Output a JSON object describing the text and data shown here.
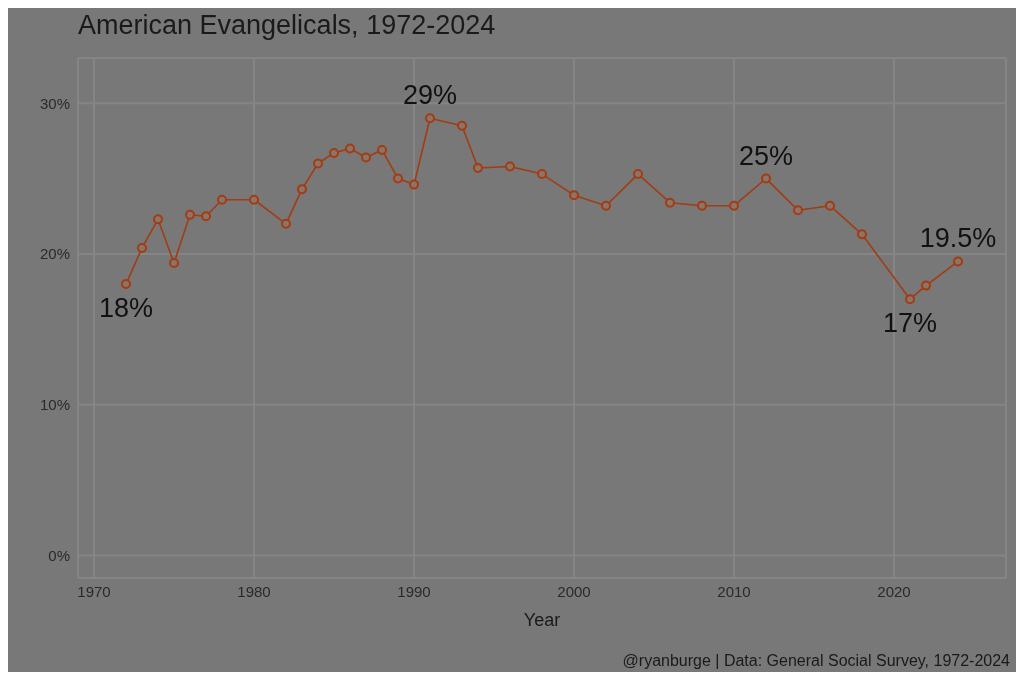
{
  "chart_data": {
    "type": "line",
    "title": "American Evangelicals, 1972-2024",
    "xlabel": "Year",
    "x": [
      1972,
      1973,
      1974,
      1975,
      1976,
      1977,
      1978,
      1980,
      1982,
      1983,
      1984,
      1985,
      1986,
      1987,
      1988,
      1989,
      1990,
      1991,
      1993,
      1994,
      1996,
      1998,
      2000,
      2002,
      2004,
      2006,
      2008,
      2010,
      2012,
      2014,
      2016,
      2018,
      2021,
      2022,
      2024
    ],
    "series": [
      {
        "color": "#a23c12",
        "values": [
          18,
          20.4,
          22.3,
          19.4,
          22.6,
          22.5,
          23.6,
          23.6,
          22.0,
          24.3,
          26.0,
          26.7,
          27.0,
          26.4,
          26.9,
          25.0,
          24.6,
          29,
          28.5,
          25.7,
          25.8,
          25.3,
          23.9,
          23.2,
          25.3,
          23.4,
          23.2,
          23.2,
          25,
          22.9,
          23.2,
          21.3,
          17,
          17.9,
          19.5
        ]
      }
    ],
    "xlim": [
      1969,
      2027
    ],
    "xticks": [
      1970,
      1980,
      1990,
      2000,
      2010,
      2020
    ],
    "ylim": [
      -1.5,
      33
    ],
    "yticks": [
      {
        "value": 0,
        "label": "0%"
      },
      {
        "value": 10,
        "label": "10%"
      },
      {
        "value": 20,
        "label": "20%"
      },
      {
        "value": 30,
        "label": "30%"
      }
    ],
    "grid": true,
    "marker": "circle",
    "line_style": "solid",
    "annotations": [
      {
        "text": "18%",
        "x": 1972,
        "y": 18
      },
      {
        "text": "29%",
        "x": 1991,
        "y": 29
      },
      {
        "text": "25%",
        "x": 2012,
        "y": 25
      },
      {
        "text": "17%",
        "x": 2021,
        "y": 17
      },
      {
        "text": "19.5%",
        "x": 2024,
        "y": 19.5
      },
      "@ryanburge | Data: General Social Survey, 1972-2024"
    ]
  }
}
